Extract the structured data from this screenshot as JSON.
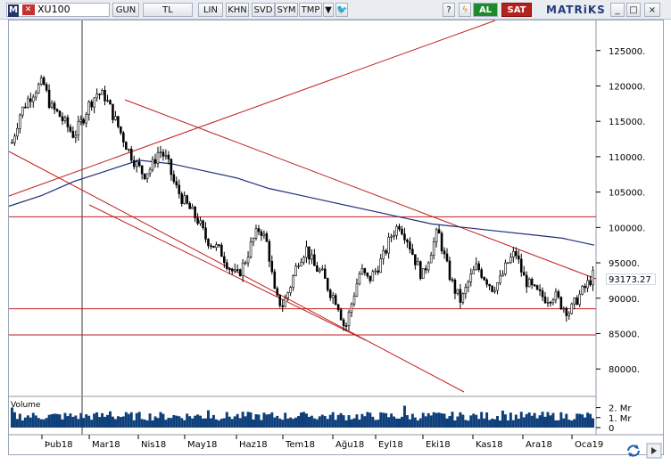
{
  "toolbar": {
    "symbol": "XU100",
    "period": "GUN",
    "currency": "TL",
    "scale": "LIN",
    "buttons": [
      "KHN",
      "SVD",
      "SYM",
      "TMP"
    ],
    "buy_label": "AL",
    "sell_label": "SAT",
    "brand": "MATRiKS",
    "window_min": "_",
    "window_max": "□",
    "window_close": "×"
  },
  "chart": {
    "price_ticks": [
      "125000.",
      "120000.",
      "115000.",
      "110000.",
      "105000.",
      "100000.",
      "95000.",
      "90000.",
      "85000.",
      "80000."
    ],
    "last_price": "93173.27",
    "volume_title": "Volume",
    "volume_ticks": [
      "2. Mr",
      "1. Mr",
      "0"
    ],
    "months": [
      "Þub18",
      "Mar18",
      "Nis18",
      "May18",
      "Haz18",
      "Tem18",
      "Ağu18",
      "Eyl18",
      "Eki18",
      "Kas18",
      "Ara18",
      "Oca19"
    ],
    "colors": {
      "candle": "#000000",
      "moving_average": "#1f2d7a",
      "trend_lines": "#c21c1c",
      "volume": "#0e3f7a",
      "background": "#ffffff"
    }
  },
  "chart_data": {
    "type": "candlestick",
    "ylim": [
      77000,
      129000
    ],
    "price_series_closes": [
      112000,
      116000,
      118000,
      119500,
      120500,
      117000,
      116000,
      114500,
      113000,
      115000,
      117500,
      119000,
      118500,
      116000,
      113500,
      111000,
      109000,
      107500,
      108500,
      111000,
      109500,
      106000,
      104000,
      102500,
      101000,
      98500,
      97500,
      96500,
      94500,
      93000,
      95000,
      98000,
      100000,
      97500,
      90000,
      89000,
      92000,
      95500,
      97000,
      94500,
      93500,
      91000,
      89500,
      85500,
      90000,
      94000,
      92500,
      94000,
      96000,
      99000,
      100500,
      98500,
      95500,
      93000,
      96500,
      99500,
      95000,
      91500,
      89500,
      92500,
      94500,
      93000,
      91500,
      92500,
      95000,
      96500,
      93000,
      91500,
      90500,
      90000,
      90500,
      89000,
      88000,
      90000,
      91500,
      93173
    ],
    "moving_average": [
      103000,
      104500,
      106500,
      108000,
      109500,
      109000,
      108000,
      107000,
      105500,
      104500,
      103500,
      102500,
      101500,
      100500,
      100000,
      99500,
      99000,
      98500,
      97500
    ],
    "horizontal_levels": [
      101500,
      88500,
      84800
    ],
    "volume_max": 2500000000,
    "volume_ticks_values": [
      2000000000,
      1000000000,
      0
    ]
  }
}
